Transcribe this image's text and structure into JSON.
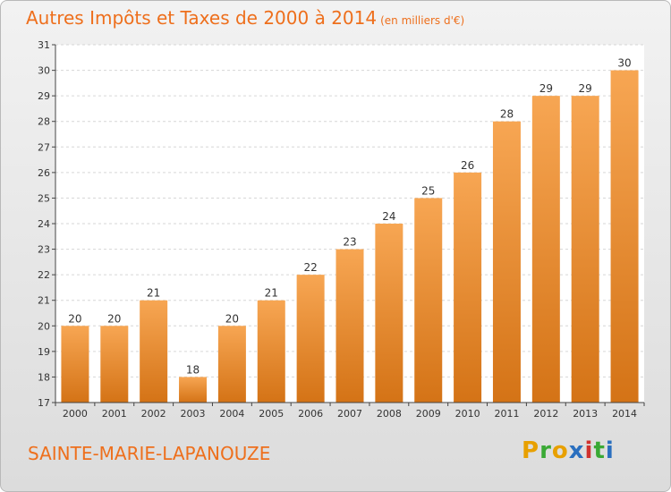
{
  "title": "Autres Impôts et Taxes de 2000 à 2014",
  "subtitle": "(en milliers d'€)",
  "commune": "SAINTE-MARIE-LAPANOUZE",
  "logo": {
    "letters": [
      "P",
      "r",
      "o",
      "x",
      "i",
      "t",
      "i"
    ],
    "colors": [
      "#e8a000",
      "#3aa935",
      "#e8a000",
      "#2a6fbf",
      "#d0312d",
      "#3aa935",
      "#2a6fbf"
    ]
  },
  "colors": {
    "bar_light": "#f7a653",
    "bar_dark": "#d47316",
    "title": "#ee6f1c",
    "grid": "#d6d6d6",
    "axis": "#444444"
  },
  "chart_data": {
    "type": "bar",
    "categories": [
      "2000",
      "2001",
      "2002",
      "2003",
      "2004",
      "2005",
      "2006",
      "2007",
      "2008",
      "2009",
      "2010",
      "2011",
      "2012",
      "2013",
      "2014"
    ],
    "values": [
      20,
      20,
      21,
      18,
      20,
      21,
      22,
      23,
      24,
      25,
      26,
      28,
      29,
      29,
      30
    ],
    "ylim": [
      17,
      31
    ],
    "yticks": [
      17,
      18,
      19,
      20,
      21,
      22,
      23,
      24,
      25,
      26,
      27,
      28,
      29,
      30,
      31
    ],
    "grid": true,
    "data_labels": true
  }
}
